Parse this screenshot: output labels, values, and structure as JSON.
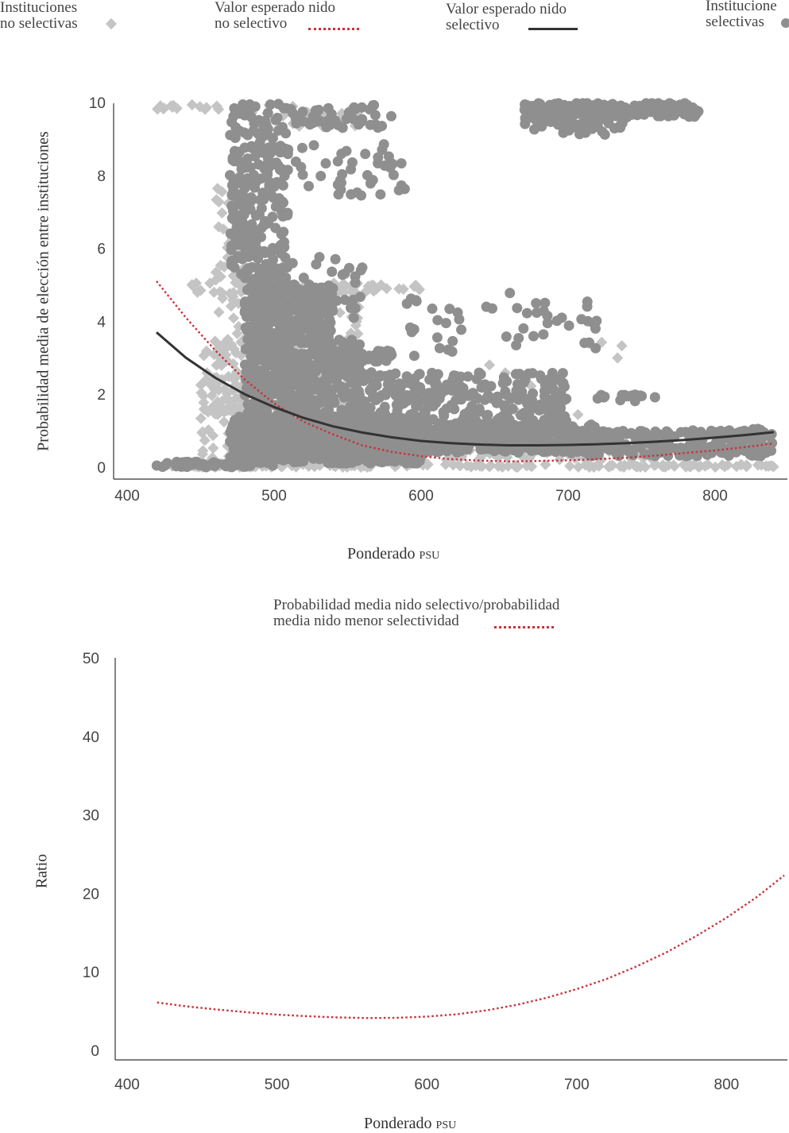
{
  "chart_data": [
    {
      "type": "scatter",
      "title": "",
      "legend": [
        {
          "label_line1": "Instituciones",
          "label_line2": "no selectivas",
          "marker": "diamond",
          "color": "#c4c4c4"
        },
        {
          "label_line1": "Valor esperado nido",
          "label_line2": "no selectivo",
          "marker": "dotted-line",
          "color": "#c8323c"
        },
        {
          "label_line1": "Valor esperado nido",
          "label_line2": "selectivo",
          "marker": "solid-line",
          "color": "#333333"
        },
        {
          "label_line1": "Institucione",
          "label_line2": "selectivas",
          "marker": "circle",
          "color": "#8f8f8f"
        }
      ],
      "xlabel_main": "Ponderado",
      "xlabel_sc": "PSU",
      "ylabel": "Probabilidad media de elección entre instituciones",
      "xlim": [
        400,
        840
      ],
      "ylim": [
        0,
        10
      ],
      "x_ticks": [
        "400",
        "500",
        "600",
        "700",
        "800"
      ],
      "x_tick_values": [
        400,
        500,
        600,
        700,
        800
      ],
      "y_ticks": [
        "0",
        "2",
        "4",
        "6",
        "8",
        "10"
      ],
      "y_tick_values": [
        0,
        2,
        4,
        6,
        8,
        10
      ],
      "series": [
        {
          "name": "Valor esperado nido no selectivo",
          "style": "dotted",
          "color": "#c8323c",
          "x": [
            420,
            440,
            460,
            480,
            500,
            520,
            540,
            560,
            580,
            600,
            620,
            640,
            660,
            680,
            700,
            720,
            740,
            760,
            780,
            800,
            820,
            840
          ],
          "y": [
            5.1,
            4.1,
            3.2,
            2.4,
            1.75,
            1.25,
            0.9,
            0.6,
            0.42,
            0.3,
            0.22,
            0.18,
            0.16,
            0.17,
            0.19,
            0.22,
            0.26,
            0.32,
            0.39,
            0.46,
            0.55,
            0.65
          ]
        },
        {
          "name": "Valor esperado nido selectivo",
          "style": "solid",
          "color": "#333333",
          "x": [
            420,
            440,
            460,
            480,
            500,
            520,
            540,
            560,
            580,
            600,
            620,
            640,
            660,
            680,
            700,
            720,
            740,
            760,
            780,
            800,
            820,
            840
          ],
          "y": [
            3.7,
            3.0,
            2.45,
            2.0,
            1.65,
            1.35,
            1.12,
            0.95,
            0.82,
            0.72,
            0.66,
            0.62,
            0.6,
            0.6,
            0.61,
            0.63,
            0.66,
            0.7,
            0.75,
            0.81,
            0.88,
            0.96
          ]
        }
      ]
    },
    {
      "type": "line",
      "title": "",
      "legend": [
        {
          "label_line1": "Probabilidad media nido  selectivo/probabilidad",
          "label_line2": "media nido menor selectividad",
          "marker": "dotted-line",
          "color": "#c8323c"
        }
      ],
      "xlabel_main": "Ponderado",
      "xlabel_sc": "PSU",
      "ylabel": "Ratio",
      "xlim": [
        400,
        840
      ],
      "ylim": [
        0,
        50
      ],
      "x_ticks": [
        "400",
        "500",
        "600",
        "700",
        "800"
      ],
      "x_tick_values": [
        400,
        500,
        600,
        700,
        800
      ],
      "y_ticks": [
        "0",
        "10",
        "20",
        "30",
        "40",
        "50"
      ],
      "y_tick_values": [
        0,
        10,
        20,
        30,
        40,
        50
      ],
      "series": [
        {
          "name": "Probabilidad media nido selectivo/probabilidad media nido menor selectividad",
          "style": "dotted",
          "color": "#c8323c",
          "x": [
            420,
            440,
            460,
            480,
            500,
            520,
            540,
            560,
            580,
            600,
            620,
            640,
            660,
            680,
            700,
            720,
            740,
            760,
            780,
            800,
            820,
            840
          ],
          "y": [
            6.1,
            5.6,
            5.2,
            4.85,
            4.55,
            4.35,
            4.2,
            4.12,
            4.15,
            4.3,
            4.6,
            5.1,
            5.8,
            6.7,
            7.8,
            9.1,
            10.7,
            12.5,
            14.6,
            16.9,
            19.5,
            22.3
          ]
        }
      ]
    }
  ]
}
